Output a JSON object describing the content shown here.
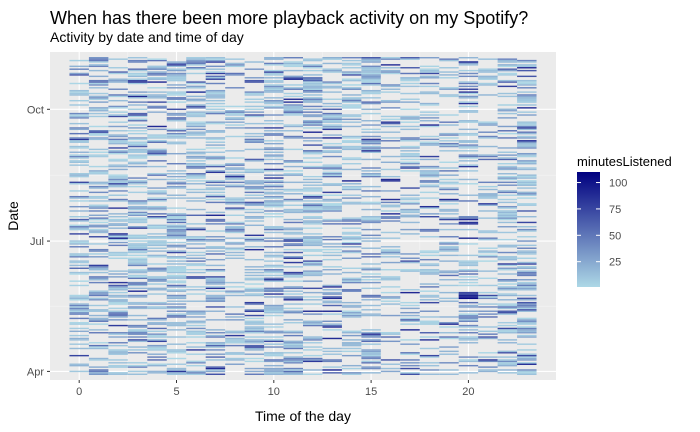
{
  "chart_data": {
    "type": "heatmap",
    "title": "When has there been more playback activity on my Spotify?",
    "subtitle": "Activity by date and time of day",
    "xlabel": "Time of the day",
    "ylabel": "Date",
    "x_ticks": [
      0,
      5,
      10,
      15,
      20
    ],
    "x_range": [
      -1.5,
      24.5
    ],
    "y_ticks": [
      {
        "label": "Apr",
        "date": "2019-04-01"
      },
      {
        "label": "Jul",
        "date": "2019-07-01"
      },
      {
        "label": "Oct",
        "date": "2019-10-01"
      }
    ],
    "y_range": [
      "2019-03-26",
      "2019-11-10"
    ],
    "grid": true,
    "legend": {
      "title": "minutesListened",
      "position": "right",
      "ticks": [
        25,
        50,
        75,
        100
      ],
      "range": [
        1,
        110
      ],
      "colors": [
        "#add8e6",
        "#000080"
      ]
    },
    "cells": [
      {
        "hour": 20,
        "date": "2019-05-22",
        "minutes": 105
      },
      {
        "hour": 20,
        "date": "2019-05-23",
        "minutes": 98
      },
      {
        "hour": 20,
        "date": "2019-05-24",
        "minutes": 92
      },
      {
        "hour": 20,
        "date": "2019-05-25",
        "minutes": 80
      },
      {
        "hour": 20,
        "date": "2019-05-26",
        "minutes": 74
      },
      {
        "hour": 20,
        "date": "2019-05-19",
        "minutes": 55
      },
      {
        "hour": 20,
        "date": "2019-11-03",
        "minutes": 88
      },
      {
        "hour": 2,
        "date": "2019-07-03",
        "minutes": 90
      },
      {
        "hour": 2,
        "date": "2019-07-06",
        "minutes": 82
      },
      {
        "hour": 3,
        "date": "2019-07-10",
        "minutes": 75
      },
      {
        "hour": 4,
        "date": "2019-07-18",
        "minutes": 70
      },
      {
        "hour": 6,
        "date": "2019-10-13",
        "minutes": 78
      },
      {
        "hour": 13,
        "date": "2019-09-17",
        "minutes": 80
      },
      {
        "hour": 11,
        "date": "2019-07-01",
        "minutes": 72
      },
      {
        "hour": 22,
        "date": "2019-05-12",
        "minutes": 68
      },
      {
        "hour": 23,
        "date": "2019-05-19",
        "minutes": 65
      },
      {
        "hour": 0,
        "date": "2019-07-16",
        "minutes": 60
      },
      {
        "hour": 9,
        "date": "2019-05-10",
        "minutes": 70
      },
      {
        "hour": 12,
        "date": "2019-06-17",
        "minutes": 66
      },
      {
        "hour": 16,
        "date": "2019-09-21",
        "minutes": 62
      }
    ]
  }
}
